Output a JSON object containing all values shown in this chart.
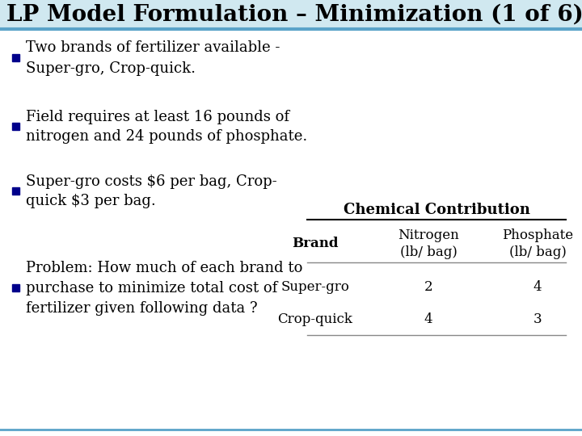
{
  "title": "LP Model Formulation – Minimization (1 of 6)",
  "title_fontsize": 20,
  "title_fontweight": "bold",
  "title_color": "#000000",
  "title_bar_color": "#5ba3c9",
  "bg_color": "#ffffff",
  "bullet_color": "#00008b",
  "bullet_points": [
    "Two brands of fertilizer available -\nSuper-gro, Crop-quick.",
    "Field requires at least 16 pounds of\nnitrogen and 24 pounds of phosphate.",
    "Super-gro costs $6 per bag, Crop-\nquick $3 per bag.",
    "Problem: How much of each brand to\npurchase to minimize total cost of\nfertilizer given following data ?"
  ],
  "table_title": "Chemical Contribution",
  "table_col_headers": [
    "Brand",
    "Nitrogen\n(lb/ bag)",
    "Phosphate\n(lb/ bag)"
  ],
  "table_rows": [
    [
      "Super-gro",
      "2",
      "4"
    ],
    [
      "Crop-quick",
      "4",
      "3"
    ]
  ],
  "text_fontsize": 13,
  "table_fontsize": 12,
  "table_title_fontsize": 13
}
